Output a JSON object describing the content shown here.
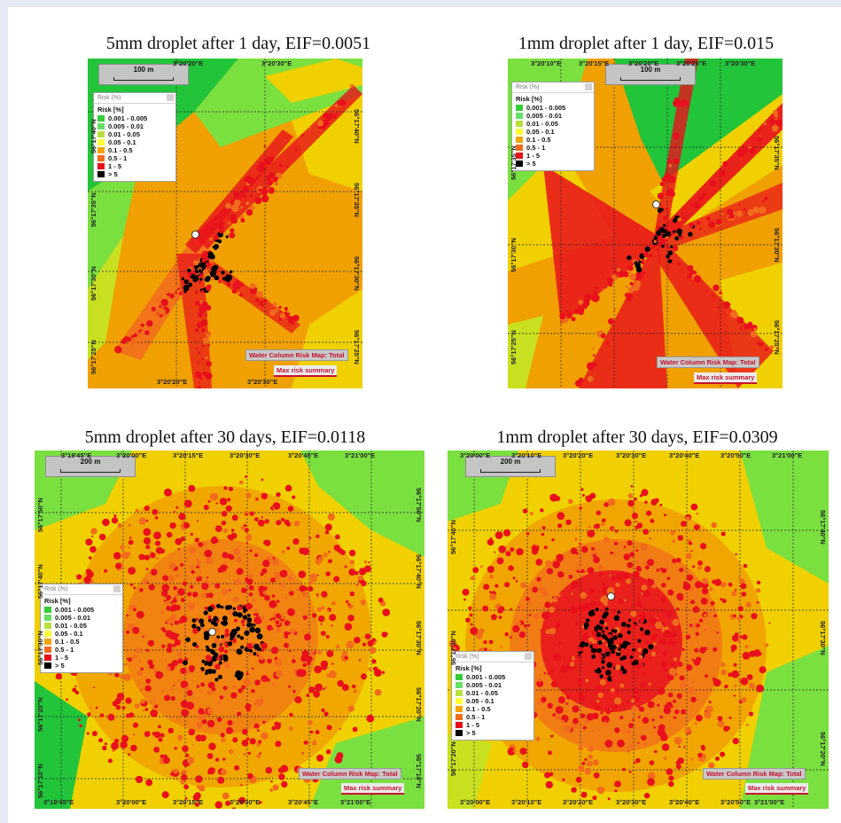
{
  "panels": [
    {
      "id": "p1",
      "title": "5mm droplet after 1 day, EIF=0.0051",
      "scale_label": "100 m",
      "x_ticks_top": [
        "3°20'20\"E",
        "3°20'30\"E"
      ],
      "x_ticks_bottom": [
        "3°20'20\"E",
        "3°20'30\"E"
      ],
      "y_ticks_left": [
        "56°17'40\"N",
        "56°17'35\"N",
        "56°17'30\"N",
        "56°17'25\"N"
      ],
      "y_ticks_right": [
        "56°17'40\"N",
        "56°17'35\"N",
        "56°17'30\"N",
        "56°17'25\"N"
      ],
      "map_label": "Water Column Risk Map: Total",
      "summary_label": "Max risk summary"
    },
    {
      "id": "p2",
      "title": "1mm droplet after 1 day, EIF=0.015",
      "scale_label": "100 m",
      "x_ticks_top": [
        "3°20'10\"E",
        "3°20'15\"E",
        "3°20'20\"E",
        "3°20'25\"E",
        "3°20'30\"E"
      ],
      "x_ticks_bottom": [
        "3°20'10\"E",
        "3°20'15\"E",
        "3°20'20\"E",
        "3°20'25\"E",
        "3°20'30\"E"
      ],
      "y_ticks_left": [
        "56°17'35\"N",
        "56°17'30\"N",
        "56°17'25\"N"
      ],
      "y_ticks_right": [
        "56°17'35\"N",
        "56°17'30\"N",
        "56°17'25\"N"
      ],
      "map_label": "Water Column Risk Map: Total",
      "summary_label": "Max risk summary"
    },
    {
      "id": "p3",
      "title": "5mm droplet after 30 days, EIF=0.0118",
      "scale_label": "200 m",
      "x_ticks_top": [
        "3°19'45\"E",
        "3°20'00\"E",
        "3°20'15\"E",
        "3°20'30\"E",
        "3°20'45\"E",
        "3°21'00\"E"
      ],
      "x_ticks_bottom": [
        "3°19'45\"E",
        "3°20'00\"E",
        "3°20'15\"E",
        "3°20'30\"E",
        "3°20'45\"E",
        "3°21'00\"E"
      ],
      "y_ticks_left": [
        "56°17'50\"N",
        "56°17'40\"N",
        "56°17'30\"N",
        "56°17'20\"N",
        "56°17'10\"N"
      ],
      "y_ticks_right": [
        "56°17'50\"N",
        "56°17'40\"N",
        "56°17'30\"N",
        "56°17'20\"N",
        "56°17'10\"N"
      ],
      "map_label": "Water Column Risk Map: Total",
      "summary_label": "Max risk summary"
    },
    {
      "id": "p4",
      "title": "1mm droplet after 30 days, EIF=0.0309",
      "scale_label": "200 m",
      "x_ticks_top": [
        "3°20'00\"E",
        "3°20'10\"E",
        "3°20'20\"E",
        "3°20'30\"E",
        "3°20'40\"E",
        "3°20'50\"E",
        "3°21'00\"E"
      ],
      "x_ticks_bottom": [
        "3°20'00\"E",
        "3°20'10\"E",
        "3°20'20\"E",
        "3°20'30\"E",
        "3°20'40\"E",
        "3°20'50\"E",
        "3°21'00\"E"
      ],
      "y_ticks_left": [
        "56°17'40\"N",
        "56°17'30\"N",
        "56°17'20\"N"
      ],
      "y_ticks_right": [
        "56°17'40\"N",
        "56°17'30\"N",
        "56°17'20\"N"
      ],
      "map_label": "Water Column Risk Map: Total",
      "summary_label": "Max risk summary"
    }
  ],
  "legend": {
    "header": "Risk (%)",
    "title": "Risk [%]",
    "classes": [
      {
        "label": "0.001 - 0.005",
        "color": "#33cc33"
      },
      {
        "label": "0.005 - 0.01",
        "color": "#66e066"
      },
      {
        "label": "0.01 - 0.05",
        "color": "#b8e03a"
      },
      {
        "label": "0.05 - 0.1",
        "color": "#ffff33"
      },
      {
        "label": "0.1 - 0.5",
        "color": "#f5a300"
      },
      {
        "label": "0.5 - 1",
        "color": "#f26b1d"
      },
      {
        "label": "1 - 5",
        "color": "#e8101c"
      },
      {
        "label": "> 5",
        "color": "#000000"
      }
    ]
  },
  "colors": {
    "background_yellow": "#f0d000",
    "green_dark": "#22c43a",
    "green_light": "#7ae040",
    "yellow_green": "#c8e020",
    "orange": "#f0a000",
    "red": "#e81818",
    "black": "#000000"
  }
}
